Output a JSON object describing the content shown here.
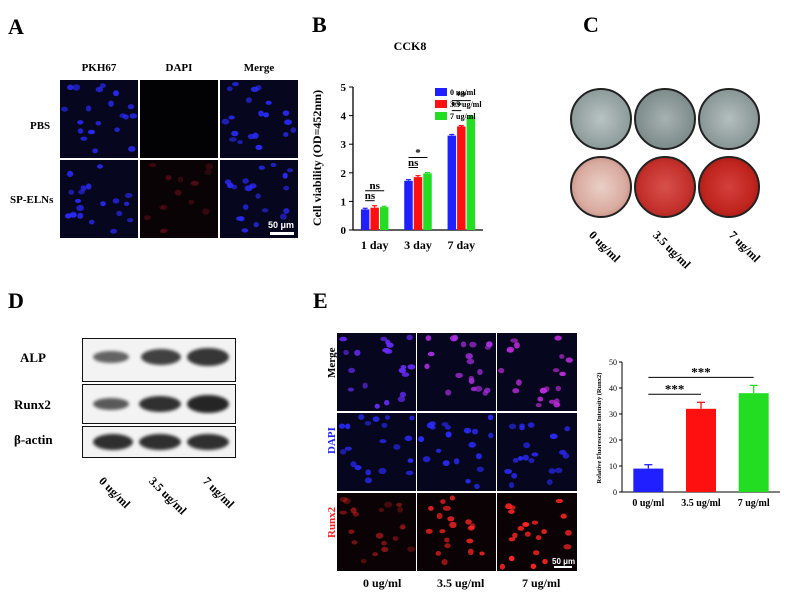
{
  "panel_labels": {
    "a": "A",
    "b": "B",
    "c": "C",
    "d": "D",
    "e": "E"
  },
  "panel_a": {
    "columns": [
      "PKH67",
      "DAPI",
      "Merge"
    ],
    "rows": [
      "PBS",
      "SP-ELNs"
    ],
    "scale_bar": "50 μm"
  },
  "panel_c": {
    "labels": [
      "0 ug/ml",
      "3.5 ug/ml",
      "7 ug/ml"
    ]
  },
  "panel_d": {
    "proteins": [
      "ALP",
      "Runx2",
      "β-actin"
    ],
    "doses": [
      "0 ug/ml",
      "3.5 ug/ml",
      "7 ug/ml"
    ]
  },
  "panel_e": {
    "rows": [
      "Merge",
      "DAPI",
      "Runx2"
    ],
    "columns": [
      "0 ug/ml",
      "3.5 ug/ml",
      "7 ug/ml"
    ],
    "scale_bar": "50 μm"
  },
  "colors": {
    "blue": "#1f1fff",
    "red": "#ff1010",
    "green": "#22dd22",
    "dapi_label": "#2222ff",
    "runx2_label": "#ff2020"
  },
  "chart_data": [
    {
      "type": "bar",
      "title": "CCK8",
      "xlabel": "",
      "ylabel": "Cell viability (OD=452nm)",
      "ylim": [
        0,
        5
      ],
      "yticks": [
        "0",
        "1",
        "2",
        "3",
        "4",
        "5"
      ],
      "categories": [
        "1 day",
        "3 day",
        "7 day"
      ],
      "series": [
        {
          "name": "0 ug/ml",
          "color": "#1f1fff",
          "values": [
            0.72,
            1.72,
            3.3
          ]
        },
        {
          "name": "3.5 ug/ml",
          "color": "#ff1010",
          "values": [
            0.78,
            1.85,
            3.62
          ]
        },
        {
          "name": "7 ug/ml",
          "color": "#22dd22",
          "values": [
            0.8,
            1.98,
            3.97
          ]
        }
      ],
      "errors": [
        [
          0.04,
          0.04,
          0.04
        ],
        [
          0.07,
          0.05,
          0.03
        ],
        [
          0.03,
          0.03,
          0.03
        ]
      ],
      "annotations": [
        "ns",
        "ns",
        "ns",
        "*",
        "**",
        "**"
      ],
      "legend": "top-right"
    },
    {
      "type": "bar",
      "title": "",
      "xlabel": "",
      "ylabel": "Relative Fluorescence Intensity (Runx2)",
      "ylim": [
        0,
        50
      ],
      "yticks": [
        "0",
        "10",
        "20",
        "30",
        "40",
        "50"
      ],
      "categories": [
        "0 ug/ml",
        "3.5 ug/ml",
        "7 ug/ml"
      ],
      "values": [
        9,
        32,
        38
      ],
      "errors": [
        1.5,
        2.5,
        3
      ],
      "colors": [
        "#1f1fff",
        "#ff1010",
        "#22dd22"
      ],
      "annotations": [
        "***",
        "***"
      ]
    }
  ]
}
